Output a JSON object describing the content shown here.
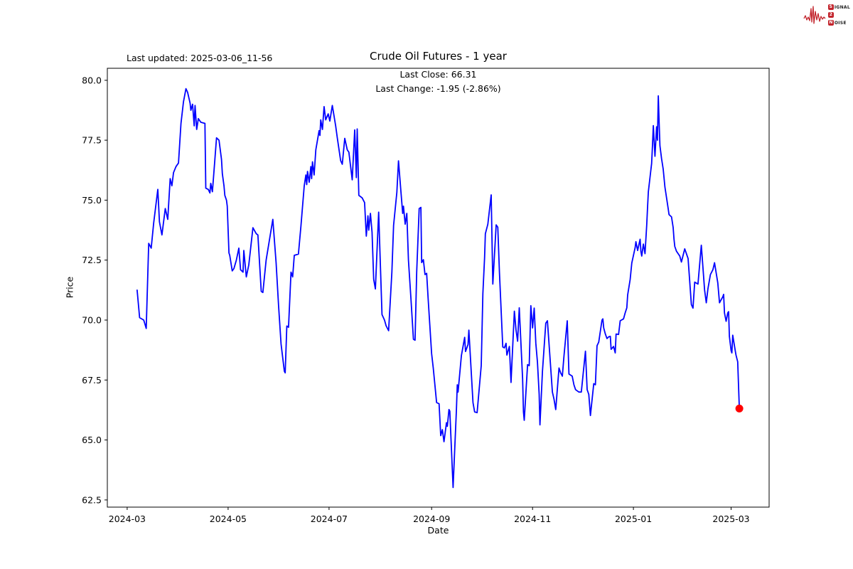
{
  "header": {
    "last_updated": "Last updated: 2025-03-06_11-56",
    "title": "Crude Oil Futures - 1 year"
  },
  "annotation": {
    "line1": "Last Close: 66.31",
    "line2": "Last Change: -1.95 (-2.86%)"
  },
  "logo": {
    "color": "#c2242c",
    "rows": [
      {
        "badge": "S",
        "text": "IGNAL"
      },
      {
        "badge": "2",
        "text": ""
      },
      {
        "badge": "N",
        "text": "OISE"
      }
    ]
  },
  "chart_data": {
    "type": "line",
    "title": "Crude Oil Futures - 1 year",
    "xlabel": "Date",
    "ylabel": "Price",
    "grid": false,
    "legend": "none",
    "line_color": "#0000ff",
    "marker_color": "#ff0000",
    "x_unit": "days since 2024-03-01",
    "xlim_days": [
      -12,
      388
    ],
    "ylim": [
      62.2,
      80.5
    ],
    "y_ticks": [
      {
        "v": 62.5,
        "label": "62.5"
      },
      {
        "v": 65.0,
        "label": "65.0"
      },
      {
        "v": 67.5,
        "label": "67.5"
      },
      {
        "v": 70.0,
        "label": "70.0"
      },
      {
        "v": 72.5,
        "label": "72.5"
      },
      {
        "v": 75.0,
        "label": "75.0"
      },
      {
        "v": 77.5,
        "label": "77.5"
      },
      {
        "v": 80.0,
        "label": "80.0"
      }
    ],
    "x_ticks": [
      {
        "d": 0,
        "label": "2024-03"
      },
      {
        "d": 61,
        "label": "2024-05"
      },
      {
        "d": 122,
        "label": "2024-07"
      },
      {
        "d": 184,
        "label": "2024-09"
      },
      {
        "d": 245,
        "label": "2024-11"
      },
      {
        "d": 306,
        "label": "2025-01"
      },
      {
        "d": 365,
        "label": "2025-03"
      }
    ],
    "last_point": {
      "date": "2025-03-06",
      "close": 66.31,
      "change": -1.95,
      "change_pct": -2.86
    },
    "points": [
      [
        6,
        71.25
      ],
      [
        7.5,
        70.1
      ],
      [
        10,
        70
      ],
      [
        11.5,
        69.65
      ],
      [
        13,
        73.2
      ],
      [
        14.5,
        73
      ],
      [
        16,
        74.05
      ],
      [
        18.5,
        75.45
      ],
      [
        19.5,
        74.1
      ],
      [
        21,
        73.55
      ],
      [
        23,
        74.65
      ],
      [
        24.5,
        74.2
      ],
      [
        26,
        75.9
      ],
      [
        27,
        75.6
      ],
      [
        28,
        76.15
      ],
      [
        29.5,
        76.4
      ],
      [
        31,
        76.55
      ],
      [
        32.5,
        78.2
      ],
      [
        34,
        79.1
      ],
      [
        35.5,
        79.65
      ],
      [
        36.5,
        79.5
      ],
      [
        38,
        79.05
      ],
      [
        38.5,
        78.75
      ],
      [
        39.5,
        79
      ],
      [
        40.5,
        78.1
      ],
      [
        41,
        78.95
      ],
      [
        42,
        77.95
      ],
      [
        43,
        78.4
      ],
      [
        44.5,
        78.25
      ],
      [
        47,
        78.2
      ],
      [
        47.5,
        75.5
      ],
      [
        49,
        75.45
      ],
      [
        50,
        75.3
      ],
      [
        50.5,
        75.7
      ],
      [
        51.5,
        75.35
      ],
      [
        53,
        76.7
      ],
      [
        54,
        77.6
      ],
      [
        55.5,
        77.5
      ],
      [
        57,
        76.7
      ],
      [
        57.5,
        76.1
      ],
      [
        58.5,
        75.6
      ],
      [
        59,
        75.2
      ],
      [
        60,
        75
      ],
      [
        60.5,
        74.75
      ],
      [
        61.5,
        72.8
      ],
      [
        62,
        72.7
      ],
      [
        63.5,
        72.05
      ],
      [
        64.5,
        72.15
      ],
      [
        66,
        72.5
      ],
      [
        67.5,
        73
      ],
      [
        68.5,
        72.1
      ],
      [
        70,
        72
      ],
      [
        70.5,
        72.9
      ],
      [
        72,
        71.8
      ],
      [
        73.5,
        72.3
      ],
      [
        76,
        73.85
      ],
      [
        78,
        73.6
      ],
      [
        79,
        73.55
      ],
      [
        81,
        71.2
      ],
      [
        82,
        71.15
      ],
      [
        84,
        72.5
      ],
      [
        88,
        74.2
      ],
      [
        90,
        72.4
      ],
      [
        91.5,
        70.6
      ],
      [
        93,
        69
      ],
      [
        95,
        67.87
      ],
      [
        95.5,
        67.8
      ],
      [
        96.5,
        69.75
      ],
      [
        97.5,
        69.7
      ],
      [
        99,
        72
      ],
      [
        100,
        71.8
      ],
      [
        101,
        72.7
      ],
      [
        103.5,
        72.75
      ],
      [
        105,
        73.9
      ],
      [
        107,
        75.6
      ],
      [
        108,
        76.05
      ],
      [
        108.5,
        75.65
      ],
      [
        109,
        76.2
      ],
      [
        110,
        75.75
      ],
      [
        111,
        76.4
      ],
      [
        111.5,
        75.9
      ],
      [
        112,
        76.6
      ],
      [
        113,
        76.05
      ],
      [
        114,
        77.1
      ],
      [
        116,
        77.9
      ],
      [
        116.5,
        77.7
      ],
      [
        117,
        78.35
      ],
      [
        118,
        77.95
      ],
      [
        118.5,
        78.4
      ],
      [
        119,
        78.9
      ],
      [
        120,
        78.35
      ],
      [
        121.5,
        78.6
      ],
      [
        122.5,
        78.3
      ],
      [
        124,
        78.95
      ],
      [
        126,
        78.1
      ],
      [
        127,
        77.6
      ],
      [
        129,
        76.65
      ],
      [
        130,
        76.5
      ],
      [
        131.5,
        77.58
      ],
      [
        133,
        77.1
      ],
      [
        134,
        77
      ],
      [
        136,
        75.85
      ],
      [
        137.5,
        77.93
      ],
      [
        138.5,
        75.94
      ],
      [
        139,
        77.97
      ],
      [
        140,
        75.2
      ],
      [
        142,
        75.1
      ],
      [
        143.5,
        74.9
      ],
      [
        144.5,
        73.5
      ],
      [
        145.5,
        74.35
      ],
      [
        146,
        73.75
      ],
      [
        147,
        74.45
      ],
      [
        148,
        73.66
      ],
      [
        149,
        71.7
      ],
      [
        150,
        71.3
      ],
      [
        152,
        74.5
      ],
      [
        153,
        72.4
      ],
      [
        154,
        70.23
      ],
      [
        155.5,
        70
      ],
      [
        156.5,
        69.76
      ],
      [
        158,
        69.56
      ],
      [
        160,
        72
      ],
      [
        161,
        73.95
      ],
      [
        163,
        75.33
      ],
      [
        164,
        76.64
      ],
      [
        165.5,
        75.33
      ],
      [
        166.5,
        74.45
      ],
      [
        167,
        74.75
      ],
      [
        168,
        74
      ],
      [
        169,
        74.45
      ],
      [
        170,
        72.5
      ],
      [
        171.5,
        70.9
      ],
      [
        173,
        69.2
      ],
      [
        174,
        69.16
      ],
      [
        175,
        72
      ],
      [
        176.5,
        74.65
      ],
      [
        177.5,
        74.7
      ],
      [
        178,
        72.4
      ],
      [
        179,
        72.52
      ],
      [
        180,
        71.9
      ],
      [
        181,
        71.95
      ],
      [
        182,
        70.8
      ],
      [
        184,
        68.6
      ],
      [
        185,
        68
      ],
      [
        186,
        67.3
      ],
      [
        187,
        66.56
      ],
      [
        188.5,
        66.51
      ],
      [
        189.5,
        65.18
      ],
      [
        190.5,
        65.43
      ],
      [
        191.5,
        64.93
      ],
      [
        193,
        65.72
      ],
      [
        193.5,
        65.57
      ],
      [
        194.5,
        66.27
      ],
      [
        195,
        66.2
      ],
      [
        197,
        63.02
      ],
      [
        199,
        66.27
      ],
      [
        199.5,
        67.3
      ],
      [
        200,
        67
      ],
      [
        202,
        68.52
      ],
      [
        204,
        69.28
      ],
      [
        204.5,
        68.69
      ],
      [
        206,
        68.98
      ],
      [
        206.5,
        69.58
      ],
      [
        209,
        66.56
      ],
      [
        210,
        66.17
      ],
      [
        211.5,
        66.14
      ],
      [
        214,
        68.1
      ],
      [
        215,
        71.1
      ],
      [
        216,
        72.6
      ],
      [
        216.5,
        73.6
      ],
      [
        218,
        74
      ],
      [
        220,
        75.22
      ],
      [
        221,
        71.5
      ],
      [
        223,
        73.97
      ],
      [
        224,
        73.87
      ],
      [
        225,
        72
      ],
      [
        227,
        68.88
      ],
      [
        228,
        68.84
      ],
      [
        229,
        69.03
      ],
      [
        229.5,
        68.54
      ],
      [
        231,
        68.9
      ],
      [
        232,
        67.4
      ],
      [
        234,
        70.37
      ],
      [
        235,
        69.6
      ],
      [
        236,
        69.12
      ],
      [
        237,
        70.51
      ],
      [
        239,
        67.55
      ],
      [
        239.5,
        66.17
      ],
      [
        240,
        65.82
      ],
      [
        242,
        68.14
      ],
      [
        243,
        68.1
      ],
      [
        244,
        70.6
      ],
      [
        245,
        69.67
      ],
      [
        246,
        70.5
      ],
      [
        247,
        69.03
      ],
      [
        248,
        68.24
      ],
      [
        249,
        66.9
      ],
      [
        249.5,
        65.63
      ],
      [
        251,
        67.85
      ],
      [
        253,
        69.87
      ],
      [
        254,
        69.97
      ],
      [
        255,
        69
      ],
      [
        257,
        67
      ],
      [
        258,
        66.7
      ],
      [
        259,
        66.27
      ],
      [
        261,
        68
      ],
      [
        262,
        67.8
      ],
      [
        263,
        67.66
      ],
      [
        264,
        68.5
      ],
      [
        266,
        69.97
      ],
      [
        267,
        67.75
      ],
      [
        269,
        67.66
      ],
      [
        270,
        67.3
      ],
      [
        271,
        67.1
      ],
      [
        273,
        67
      ],
      [
        274.5,
        67
      ],
      [
        277,
        68.7
      ],
      [
        278,
        67.1
      ],
      [
        279,
        66.9
      ],
      [
        280,
        66.02
      ],
      [
        282,
        67.35
      ],
      [
        283,
        67.3
      ],
      [
        284,
        68.93
      ],
      [
        285,
        69.08
      ],
      [
        287,
        70
      ],
      [
        287.5,
        70.05
      ],
      [
        288,
        69.67
      ],
      [
        289,
        69.42
      ],
      [
        290,
        69.23
      ],
      [
        291,
        69.3
      ],
      [
        292,
        69.32
      ],
      [
        292.5,
        68.78
      ],
      [
        294,
        68.9
      ],
      [
        295,
        68.63
      ],
      [
        295.5,
        69.42
      ],
      [
        297,
        69.4
      ],
      [
        298,
        69.97
      ],
      [
        300,
        70.05
      ],
      [
        301,
        70.3
      ],
      [
        302,
        70.51
      ],
      [
        302.5,
        71.05
      ],
      [
        304,
        71.69
      ],
      [
        305,
        72.38
      ],
      [
        307,
        73.02
      ],
      [
        307.5,
        73.27
      ],
      [
        308.5,
        72.9
      ],
      [
        310,
        73.37
      ],
      [
        310.5,
        72.87
      ],
      [
        311,
        72.67
      ],
      [
        312,
        73.17
      ],
      [
        313,
        72.77
      ],
      [
        314,
        73.96
      ],
      [
        314.5,
        74.65
      ],
      [
        315,
        75.35
      ],
      [
        316,
        75.94
      ],
      [
        317,
        76.53
      ],
      [
        317.5,
        77.27
      ],
      [
        318,
        78.11
      ],
      [
        319,
        76.83
      ],
      [
        320,
        78.06
      ],
      [
        320.5,
        77.5
      ],
      [
        321,
        79.35
      ],
      [
        321.5,
        78.3
      ],
      [
        322,
        77.27
      ],
      [
        323,
        76.73
      ],
      [
        324,
        76.29
      ],
      [
        325,
        75.55
      ],
      [
        327,
        74.65
      ],
      [
        327.5,
        74.4
      ],
      [
        329,
        74.3
      ],
      [
        330,
        73.86
      ],
      [
        330.5,
        73.37
      ],
      [
        331,
        73.07
      ],
      [
        332,
        72.87
      ],
      [
        334,
        72.67
      ],
      [
        335,
        72.42
      ],
      [
        337,
        72.97
      ],
      [
        339,
        72.57
      ],
      [
        341,
        70.65
      ],
      [
        342,
        70.5
      ],
      [
        343,
        71.58
      ],
      [
        345,
        71.5
      ],
      [
        347,
        73.12
      ],
      [
        349,
        71.26
      ],
      [
        350,
        70.72
      ],
      [
        351,
        71.3
      ],
      [
        352.5,
        71.9
      ],
      [
        354,
        72.1
      ],
      [
        355,
        72.39
      ],
      [
        357,
        71.55
      ],
      [
        358,
        70.72
      ],
      [
        360,
        70.97
      ],
      [
        360.5,
        71.07
      ],
      [
        361,
        70.3
      ],
      [
        362,
        69.95
      ],
      [
        363,
        70.3
      ],
      [
        363.5,
        70.35
      ],
      [
        364,
        69.32
      ],
      [
        365,
        68.73
      ],
      [
        365.5,
        68.63
      ],
      [
        366,
        69.37
      ],
      [
        367.5,
        68.73
      ],
      [
        368,
        68.54
      ],
      [
        369,
        68.26
      ],
      [
        370,
        66.31
      ]
    ]
  }
}
